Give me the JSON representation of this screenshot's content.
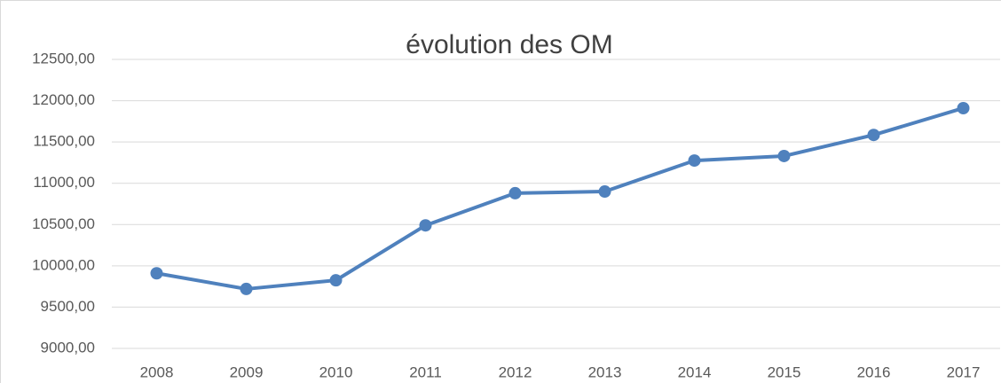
{
  "chart_data": {
    "type": "line",
    "title": "évolution des OM",
    "categories": [
      "2008",
      "2009",
      "2010",
      "2011",
      "2012",
      "2013",
      "2014",
      "2015",
      "2016",
      "2017"
    ],
    "series": [
      {
        "name": "OM",
        "color": "#4f81bd",
        "values": [
          9910,
          9720,
          9825,
          10490,
          10880,
          10900,
          11275,
          11330,
          11585,
          11910
        ]
      }
    ],
    "ylim": [
      9000,
      12500
    ],
    "yticks": [
      {
        "value": 9000,
        "label": "9000,00"
      },
      {
        "value": 9500,
        "label": "9500,00"
      },
      {
        "value": 10000,
        "label": "10000,00"
      },
      {
        "value": 10500,
        "label": "10500,00"
      },
      {
        "value": 11000,
        "label": "11000,00"
      },
      {
        "value": 11500,
        "label": "11500,00"
      },
      {
        "value": 12000,
        "label": "12000,00"
      },
      {
        "value": 12500,
        "label": "12500,00"
      }
    ],
    "grid": true
  }
}
